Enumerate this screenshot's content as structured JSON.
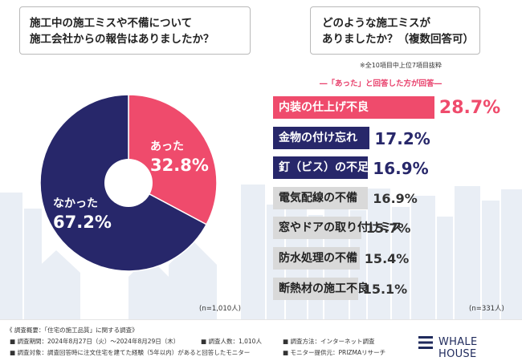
{
  "left_question": [
    "施工中の施工ミスや不備について",
    "施工会社からの報告はありましたか？"
  ],
  "right_question": [
    "どのような施工ミスが",
    "ありましたか？（複数回答可）"
  ],
  "note": "※全10項目中上位7項目抜粋",
  "legend": "―「あった」と回答した方が回答―",
  "chart_data": [
    {
      "type": "pie",
      "categories": [
        "あった",
        "なかった"
      ],
      "values": [
        32.8,
        67.2
      ],
      "value_labels": [
        "32.8%",
        "67.2%"
      ],
      "colors": [
        "#ef4b6c",
        "#27276a"
      ],
      "sample_size": "(n=1,010人)"
    },
    {
      "type": "bar",
      "orientation": "horizontal",
      "categories": [
        "内装の仕上げ不良",
        "金物の付け忘れ",
        "釘（ビス）の不足、めり込み",
        "電気配線の不備",
        "窓やドアの取り付けミス",
        "防水処理の不備",
        "断熱材の施工不良"
      ],
      "values": [
        28.7,
        17.2,
        16.9,
        16.9,
        15.7,
        15.4,
        15.1
      ],
      "value_labels": [
        "28.7%",
        "17.2%",
        "16.9%",
        "16.9%",
        "15.7%",
        "15.4%",
        "15.1%"
      ],
      "bar_colors": [
        "#ef4b6c",
        "#27276a",
        "#27276a",
        "#d9d9d9",
        "#d9d9d9",
        "#d9d9d9",
        "#d9d9d9"
      ],
      "sample_size": "(n=331人)"
    }
  ],
  "footer": {
    "title": "《 調査概要：「住宅の施工品質」に関する調査》",
    "period": "■ 調査期間：2024年8月27日（火）～2024年8月29日（木）",
    "count": "■ 調査人数：1,010人",
    "method": "■ 調査方法：インターネット調査",
    "target": "■ 調査対象：調査回答時に注文住宅を建てた経験（5年以内）があると回答したモニター",
    "provider": "■ モニター提供元：PRIZMAリサーチ"
  },
  "logo": "WHALE HOUSE"
}
